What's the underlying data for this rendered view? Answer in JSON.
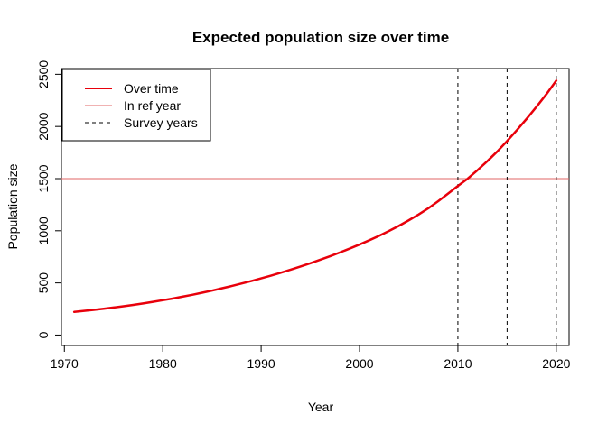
{
  "chart_data": {
    "type": "line",
    "title": "Expected population size over time",
    "xlabel": "Year",
    "ylabel": "Population size",
    "xlim": [
      1969.7,
      2021.3
    ],
    "ylim": [
      -100,
      2555
    ],
    "x_ticks": [
      1970,
      1980,
      1990,
      2000,
      2010,
      2020
    ],
    "y_ticks": [
      0,
      500,
      1000,
      1500,
      2000,
      2500
    ],
    "grid": false,
    "legend_position": "top-left",
    "series": [
      {
        "name": "Over time",
        "color": "#e8000b",
        "style": "solid",
        "x": [
          1971,
          1972,
          1973,
          1974,
          1975,
          1976,
          1977,
          1978,
          1979,
          1980,
          1981,
          1982,
          1983,
          1984,
          1985,
          1986,
          1987,
          1988,
          1989,
          1990,
          1991,
          1992,
          1993,
          1994,
          1995,
          1996,
          1997,
          1998,
          1999,
          2000,
          2001,
          2002,
          2003,
          2004,
          2005,
          2006,
          2007,
          2008,
          2009,
          2010,
          2011,
          2012,
          2013,
          2014,
          2015,
          2016,
          2017,
          2018,
          2019,
          2020
        ],
        "y": [
          222,
          232,
          242,
          252,
          264,
          276,
          289,
          303,
          318,
          334,
          350,
          368,
          386,
          406,
          426,
          448,
          470,
          494,
          518,
          544,
          570,
          598,
          627,
          657,
          689,
          722,
          756,
          792,
          829,
          868,
          909,
          952,
          998,
          1047,
          1100,
          1156,
          1216,
          1284,
          1356,
          1430,
          1500,
          1582,
          1668,
          1760,
          1860,
          1965,
          2075,
          2190,
          2310,
          2440
        ]
      }
    ],
    "reference_lines": [
      {
        "name": "In ref year",
        "orientation": "horizontal",
        "value": 1500,
        "color": "#e06666",
        "style": "solid"
      },
      {
        "name": "Survey years",
        "orientation": "vertical",
        "values": [
          2010,
          2015,
          2020
        ],
        "color": "#000000",
        "style": "dashed"
      }
    ],
    "legend": [
      {
        "label": "Over time",
        "color": "#e8000b",
        "style": "solid",
        "width": 2
      },
      {
        "label": "In ref year",
        "color": "#e06666",
        "style": "solid",
        "width": 1
      },
      {
        "label": "Survey years",
        "color": "#000000",
        "style": "dashed",
        "width": 1
      }
    ]
  }
}
